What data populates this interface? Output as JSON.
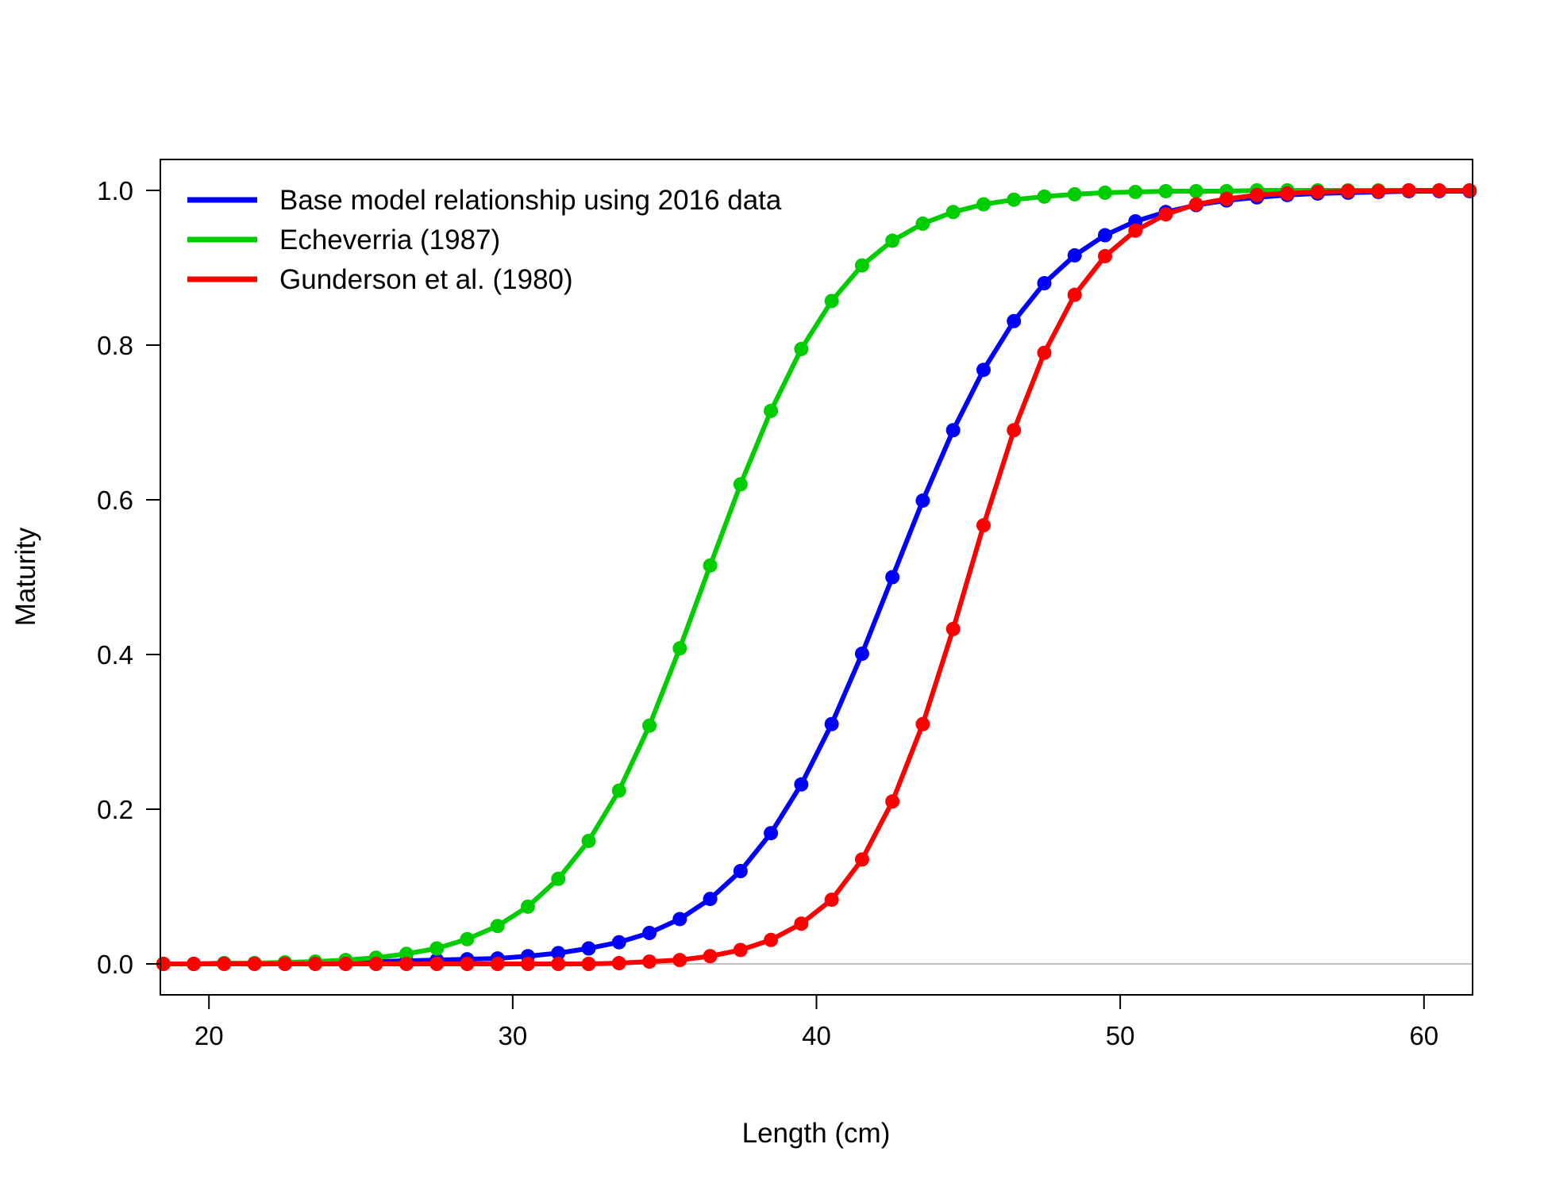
{
  "chart_data": {
    "type": "line",
    "xlabel": "Length (cm)",
    "ylabel": "Maturity",
    "xlim": [
      18.4,
      61.6
    ],
    "ylim": [
      -0.04,
      1.04
    ],
    "xticks": [
      "20",
      "30",
      "40",
      "50",
      "60"
    ],
    "yticks": [
      "0.0",
      "0.2",
      "0.4",
      "0.6",
      "0.8",
      "1.0"
    ],
    "legend_position": "top-left",
    "reference_line": {
      "y": 0,
      "color": "#bebebe"
    },
    "x": [
      18.5,
      19.5,
      20.5,
      21.5,
      22.5,
      23.5,
      24.5,
      25.5,
      26.5,
      27.5,
      28.5,
      29.5,
      30.5,
      31.5,
      32.5,
      33.5,
      34.5,
      35.5,
      36.5,
      37.5,
      38.5,
      39.5,
      40.5,
      41.5,
      42.5,
      43.5,
      44.5,
      45.5,
      46.5,
      47.5,
      48.5,
      49.5,
      50.5,
      51.5,
      52.5,
      53.5,
      54.5,
      55.5,
      56.5,
      57.5,
      58.5,
      59.5,
      60.5,
      61.5
    ],
    "series": [
      {
        "name": "Base model relationship using 2016 data",
        "color": "#0000ff",
        "values": [
          0.0,
          0.0,
          0.001,
          0.001,
          0.001,
          0.002,
          0.002,
          0.003,
          0.004,
          0.005,
          0.006,
          0.007,
          0.01,
          0.014,
          0.02,
          0.028,
          0.04,
          0.058,
          0.084,
          0.12,
          0.169,
          0.232,
          0.31,
          0.401,
          0.5,
          0.599,
          0.69,
          0.768,
          0.831,
          0.88,
          0.916,
          0.942,
          0.96,
          0.972,
          0.981,
          0.987,
          0.991,
          0.994,
          0.996,
          0.997,
          0.998,
          0.999,
          0.999,
          0.999
        ]
      },
      {
        "name": "Echeverria (1987)",
        "color": "#00cd00",
        "values": [
          0.0,
          0.0,
          0.001,
          0.001,
          0.002,
          0.003,
          0.005,
          0.008,
          0.013,
          0.02,
          0.032,
          0.049,
          0.074,
          0.11,
          0.159,
          0.224,
          0.308,
          0.408,
          0.515,
          0.62,
          0.715,
          0.795,
          0.857,
          0.903,
          0.935,
          0.957,
          0.972,
          0.982,
          0.988,
          0.992,
          0.995,
          0.997,
          0.998,
          0.999,
          0.999,
          0.999,
          1.0,
          1.0,
          1.0,
          1.0,
          1.0,
          1.0,
          1.0,
          1.0
        ]
      },
      {
        "name": "Gunderson et al. (1980)",
        "color": "#ff0000",
        "values": [
          0.0,
          0.0,
          0.0,
          0.0,
          0.0,
          0.0,
          0.0,
          0.0,
          0.0,
          0.0,
          0.0,
          0.0,
          0.0,
          0.0,
          0.0,
          0.001,
          0.003,
          0.005,
          0.01,
          0.018,
          0.031,
          0.052,
          0.083,
          0.135,
          0.21,
          0.31,
          0.433,
          0.567,
          0.69,
          0.79,
          0.865,
          0.915,
          0.948,
          0.969,
          0.982,
          0.989,
          0.994,
          0.996,
          0.998,
          0.999,
          0.999,
          1.0,
          1.0,
          1.0
        ]
      }
    ]
  }
}
